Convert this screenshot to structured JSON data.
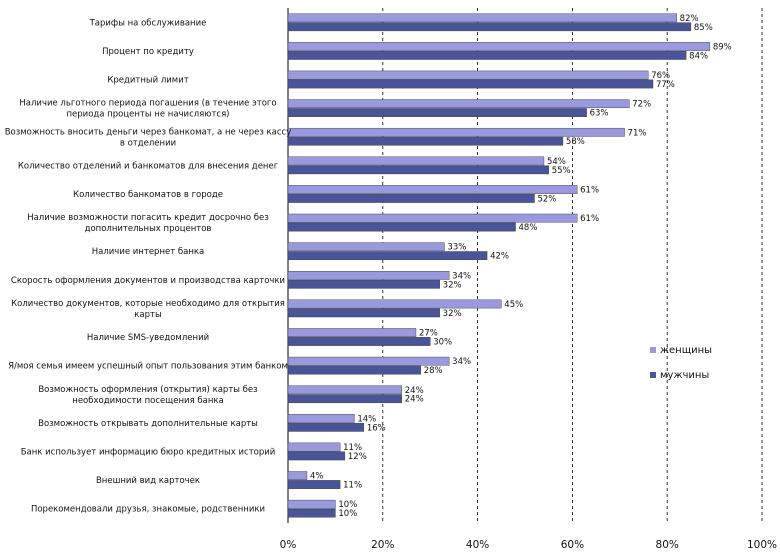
{
  "chart_data": {
    "type": "bar",
    "orientation": "horizontal",
    "categories": [
      [
        "Тарифы на обслуживание"
      ],
      [
        "Процент по кредиту"
      ],
      [
        "Кредитный лимит"
      ],
      [
        "Наличие льготного периода погашения (в течение этого",
        "периода проценты не начисляются)"
      ],
      [
        "Возможность вносить деньги через банкомат, а не через кассу",
        "в отделении"
      ],
      [
        "Количество отделений и банкоматов для внесения денег"
      ],
      [
        "Количество банкоматов в городе"
      ],
      [
        "Наличие возможности погасить кредит досрочно без",
        "дополнительных процентов"
      ],
      [
        "Наличие интернет банка"
      ],
      [
        "Скорость оформления документов и производства карточки"
      ],
      [
        "Количество документов,  которые необходимо для открытия",
        "карты"
      ],
      [
        "Наличие SMS-уведомлений"
      ],
      [
        "Я/моя семья имеем успешный опыт пользования этим банком"
      ],
      [
        "Возможность оформления (открытия) карты без",
        "необходимости посещения банка"
      ],
      [
        "Возможность открывать дополнительные карты"
      ],
      [
        "Банк использует информацию бюро кредитных историй"
      ],
      [
        "Внешний вид карточек"
      ],
      [
        "Порекомендовали друзья, знакомые, родственники"
      ]
    ],
    "series": [
      {
        "name": "женщины",
        "color": "#9999dd",
        "values": [
          82,
          89,
          76,
          72,
          71,
          54,
          61,
          61,
          33,
          34,
          45,
          27,
          34,
          24,
          14,
          11,
          4,
          10
        ]
      },
      {
        "name": "мужчины",
        "color": "#4a5599",
        "values": [
          85,
          84,
          77,
          63,
          58,
          55,
          52,
          48,
          42,
          32,
          32,
          30,
          28,
          24,
          16,
          12,
          11,
          10
        ]
      }
    ],
    "value_suffix": "%",
    "xlim": [
      0,
      100
    ],
    "x_ticks": [
      "0%",
      "20%",
      "40%",
      "60%",
      "80%",
      "100%"
    ],
    "grid": true,
    "legend_position": "right"
  }
}
